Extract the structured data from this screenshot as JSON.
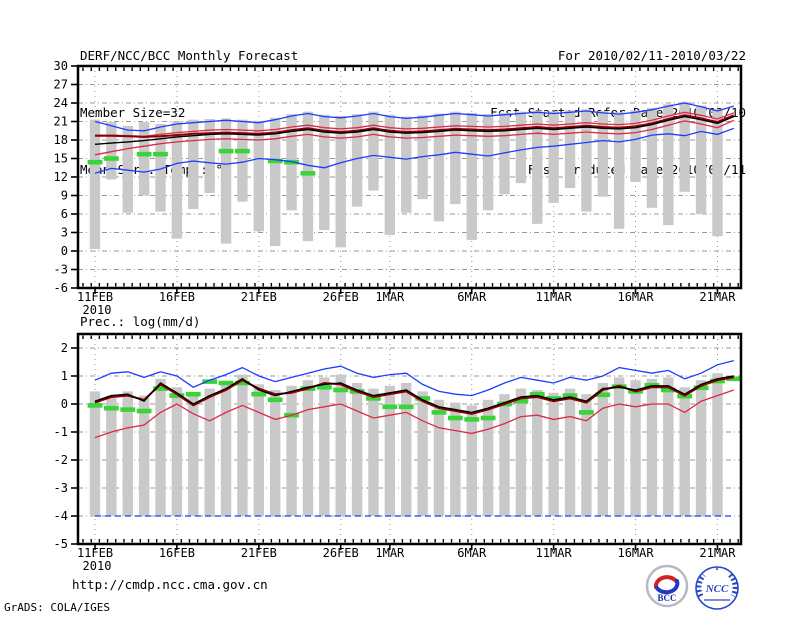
{
  "header": {
    "title": "DERF/NCC/BCC Monthly Forecast",
    "member_size": "Member Size=32",
    "for_range": "For 2010/02/11-2010/03/22",
    "fcst_started": "Fcst Started Refer Date 2010/02/10",
    "fcst_produced": "Fcst Produced Date 2010/02/11"
  },
  "footer": {
    "url": "http://cmdp.ncc.cma.gov.cn",
    "credit": "GrADS: COLA/IGES",
    "logos": {
      "bcc": "BCC",
      "ncc": "NCC"
    }
  },
  "colors": {
    "ensemble_envelope": "#1e3cff",
    "std_band": "#e02848",
    "ensemble_mean": "#000000",
    "control_run": "#8b0000",
    "observation": "#3ad43a",
    "member_bars": "#c9c9c9",
    "grid": "#999999"
  },
  "chart_data": [
    {
      "type": "line",
      "title": "Mean Surf. Temp.: °C",
      "x_start": "2010-02-11",
      "x_end": "2010-03-22",
      "n_days": 40,
      "ylim": [
        -6,
        30
      ],
      "yticks": [
        30,
        27,
        24,
        21,
        18,
        15,
        12,
        9,
        6,
        3,
        0,
        -3,
        -6
      ],
      "x_ticks": [
        {
          "day": 0,
          "label": "11FEB",
          "year": "2010"
        },
        {
          "day": 5,
          "label": "16FEB"
        },
        {
          "day": 10,
          "label": "21FEB"
        },
        {
          "day": 15,
          "label": "26FEB"
        },
        {
          "day": 18,
          "label": "1MAR"
        },
        {
          "day": 23,
          "label": "6MAR"
        },
        {
          "day": 28,
          "label": "11MAR"
        },
        {
          "day": 33,
          "label": "16MAR"
        },
        {
          "day": 38,
          "label": "21MAR"
        }
      ],
      "series": [
        {
          "name": "ensemble-max",
          "color": "#1e3cff",
          "width": 1.3,
          "dash": "",
          "values": [
            21.0,
            20.3,
            19.6,
            19.5,
            20.1,
            20.6,
            20.8,
            21.0,
            21.2,
            21.0,
            20.8,
            21.3,
            21.9,
            22.3,
            21.8,
            21.6,
            21.9,
            22.3,
            21.8,
            21.5,
            21.7,
            22.0,
            22.3,
            22.1,
            21.9,
            22.1,
            22.3,
            22.5,
            22.3,
            22.5,
            22.7,
            22.4,
            22.2,
            22.5,
            22.9,
            23.5,
            24.0,
            23.4,
            22.7,
            23.5
          ]
        },
        {
          "name": "ensemble-min",
          "color": "#1e3cff",
          "width": 1.3,
          "dash": "",
          "values": [
            12.6,
            13.4,
            13.1,
            12.8,
            13.3,
            14.2,
            14.6,
            14.3,
            14.1,
            14.4,
            15.0,
            14.8,
            14.5,
            13.9,
            13.5,
            14.3,
            15.0,
            15.5,
            15.2,
            14.9,
            15.3,
            15.6,
            16.0,
            15.7,
            15.4,
            15.9,
            16.4,
            16.8,
            17.0,
            17.3,
            17.6,
            17.9,
            17.7,
            18.1,
            18.8,
            19.0,
            18.7,
            19.4,
            18.9,
            19.9
          ]
        },
        {
          "name": "mean-plus-std",
          "color": "#e02848",
          "width": 1.3,
          "dash": "",
          "values": [
            18.8,
            18.8,
            18.7,
            18.6,
            18.9,
            19.2,
            19.4,
            19.6,
            19.7,
            19.6,
            19.5,
            19.7,
            20.1,
            20.4,
            20.0,
            19.8,
            20.0,
            20.4,
            20.0,
            19.8,
            19.9,
            20.1,
            20.3,
            20.2,
            20.1,
            20.2,
            20.4,
            20.6,
            20.4,
            20.6,
            20.8,
            20.6,
            20.5,
            20.7,
            21.2,
            21.9,
            22.5,
            22.0,
            21.4,
            22.4
          ]
        },
        {
          "name": "mean-minus-std",
          "color": "#e02848",
          "width": 1.3,
          "dash": "",
          "values": [
            15.6,
            16.1,
            16.6,
            17.0,
            17.4,
            17.7,
            17.9,
            18.1,
            18.2,
            18.1,
            18.0,
            18.2,
            18.6,
            18.9,
            18.5,
            18.3,
            18.5,
            18.9,
            18.5,
            18.3,
            18.4,
            18.6,
            18.8,
            18.7,
            18.6,
            18.7,
            18.9,
            19.1,
            18.9,
            19.1,
            19.3,
            19.1,
            19.0,
            19.2,
            19.7,
            20.4,
            21.1,
            20.6,
            20.0,
            21.2
          ]
        },
        {
          "name": "control-run",
          "color": "#8b0000",
          "width": 2,
          "dash": "",
          "values": [
            18.7,
            18.7,
            18.6,
            18.5,
            18.6,
            18.8,
            19.0,
            19.1,
            19.2,
            19.1,
            19.0,
            19.2,
            19.6,
            19.9,
            19.5,
            19.3,
            19.5,
            19.9,
            19.5,
            19.3,
            19.4,
            19.6,
            19.8,
            19.7,
            19.6,
            19.7,
            19.9,
            20.1,
            19.9,
            20.1,
            20.3,
            20.1,
            20.0,
            20.2,
            20.7,
            21.4,
            22.0,
            21.5,
            20.9,
            22.0
          ]
        },
        {
          "name": "ensemble-mean",
          "color": "#000000",
          "width": 1.4,
          "dash": "",
          "values": [
            17.3,
            17.5,
            17.7,
            17.9,
            18.2,
            18.5,
            18.7,
            18.9,
            19.0,
            18.9,
            18.8,
            19.0,
            19.4,
            19.7,
            19.3,
            19.1,
            19.3,
            19.7,
            19.3,
            19.1,
            19.2,
            19.4,
            19.6,
            19.5,
            19.4,
            19.5,
            19.7,
            19.9,
            19.7,
            19.9,
            20.1,
            19.9,
            19.8,
            20.0,
            20.5,
            21.2,
            21.8,
            21.3,
            20.7,
            21.8
          ]
        }
      ],
      "observation": {
        "name": "observation",
        "color": "#3ad43a",
        "values": [
          14.4,
          15.0,
          null,
          15.7,
          15.7,
          null,
          null,
          null,
          16.2,
          16.2,
          null,
          14.6,
          14.4,
          12.6,
          null,
          null,
          null,
          null,
          null,
          null,
          null,
          null,
          null,
          null,
          null,
          null,
          null,
          null,
          null,
          null,
          null,
          null,
          null,
          null,
          null,
          null,
          null,
          null,
          null,
          null
        ]
      },
      "bars": {
        "name": "member-spread",
        "color": "#c9c9c9",
        "high": [
          21.3,
          20.9,
          20.3,
          20.9,
          20.6,
          21.0,
          21.3,
          21.4,
          21.5,
          21.3,
          21.1,
          21.6,
          22.2,
          22.6,
          22.1,
          21.9,
          22.2,
          22.6,
          22.1,
          21.8,
          22.0,
          22.3,
          22.6,
          22.4,
          22.2,
          22.4,
          22.6,
          22.8,
          22.6,
          22.8,
          23.0,
          22.7,
          22.5,
          22.8,
          23.2,
          23.8,
          24.2,
          23.6,
          23.0,
          null
        ],
        "low": [
          0.3,
          11.6,
          6.2,
          9.0,
          6.4,
          2.0,
          6.8,
          9.4,
          1.2,
          8.0,
          3.2,
          0.8,
          6.6,
          1.6,
          3.4,
          0.6,
          7.2,
          9.8,
          2.6,
          6.2,
          8.4,
          4.8,
          7.6,
          1.8,
          6.6,
          9.2,
          11.0,
          4.4,
          7.8,
          10.2,
          6.4,
          8.8,
          3.6,
          11.2,
          7.0,
          4.2,
          9.6,
          6.0,
          2.4,
          null
        ]
      }
    },
    {
      "type": "line",
      "title": "Prec.: log(mm/d)",
      "x_start": "2010-02-11",
      "x_end": "2010-03-22",
      "n_days": 40,
      "ylim": [
        -5,
        2.5
      ],
      "yticks": [
        2,
        1,
        0,
        -1,
        -2,
        -3,
        -4,
        -5
      ],
      "x_ticks": [
        {
          "day": 0,
          "label": "11FEB",
          "year": "2010"
        },
        {
          "day": 5,
          "label": "16FEB"
        },
        {
          "day": 10,
          "label": "21FEB"
        },
        {
          "day": 15,
          "label": "26FEB"
        },
        {
          "day": 18,
          "label": "1MAR"
        },
        {
          "day": 23,
          "label": "6MAR"
        },
        {
          "day": 28,
          "label": "11MAR"
        },
        {
          "day": 33,
          "label": "16MAR"
        },
        {
          "day": 38,
          "label": "21MAR"
        }
      ],
      "series": [
        {
          "name": "ensemble-max",
          "color": "#1e3cff",
          "width": 1.3,
          "dash": "",
          "values": [
            0.85,
            1.1,
            1.15,
            0.95,
            1.15,
            1.0,
            0.6,
            0.85,
            1.05,
            1.3,
            1.0,
            0.8,
            0.95,
            1.1,
            1.25,
            1.35,
            1.1,
            0.95,
            1.05,
            1.1,
            0.7,
            0.45,
            0.35,
            0.3,
            0.5,
            0.75,
            0.95,
            0.85,
            0.75,
            0.95,
            0.85,
            1.0,
            1.3,
            1.2,
            1.1,
            1.2,
            0.9,
            1.1,
            1.4,
            1.55
          ]
        },
        {
          "name": "ensemble-min",
          "color": "#1e3cff",
          "width": 1.3,
          "dash": "6 4",
          "values": [
            -4,
            -4,
            -4,
            -4,
            -4,
            -4,
            -4,
            -4,
            -4,
            -4,
            -4,
            -4,
            -4,
            -4,
            -4,
            -4,
            -4,
            -4,
            -4,
            -4,
            -4,
            -4,
            -4,
            -4,
            -4,
            -4,
            -4,
            -4,
            -4,
            -4,
            -4,
            -4,
            -4,
            -4,
            -4,
            -4,
            -4,
            -4,
            -4,
            -4
          ]
        },
        {
          "name": "mean-minus-std",
          "color": "#e02848",
          "width": 1.3,
          "dash": "",
          "values": [
            -1.2,
            -1.0,
            -0.85,
            -0.75,
            -0.3,
            0.0,
            -0.35,
            -0.6,
            -0.3,
            -0.05,
            -0.3,
            -0.55,
            -0.4,
            -0.2,
            -0.1,
            0.0,
            -0.25,
            -0.5,
            -0.4,
            -0.3,
            -0.6,
            -0.85,
            -0.95,
            -1.05,
            -0.9,
            -0.7,
            -0.45,
            -0.4,
            -0.55,
            -0.45,
            -0.6,
            -0.15,
            0.0,
            -0.1,
            0.0,
            0.0,
            -0.3,
            0.1,
            0.3,
            0.5
          ]
        },
        {
          "name": "control-run",
          "color": "#8b0000",
          "width": 2,
          "dash": "",
          "values": [
            0.05,
            0.25,
            0.3,
            0.15,
            0.7,
            0.35,
            -0.05,
            0.25,
            0.5,
            0.85,
            0.55,
            0.35,
            0.4,
            0.55,
            0.75,
            0.7,
            0.45,
            0.25,
            0.35,
            0.45,
            0.1,
            -0.15,
            -0.25,
            -0.35,
            -0.2,
            0.0,
            0.2,
            0.25,
            0.1,
            0.2,
            0.05,
            0.5,
            0.65,
            0.45,
            0.6,
            0.6,
            0.3,
            0.65,
            0.85,
            0.95
          ]
        },
        {
          "name": "ensemble-mean",
          "color": "#000000",
          "width": 1.4,
          "dash": "",
          "values": [
            0.1,
            0.3,
            0.35,
            0.1,
            0.75,
            0.4,
            0.0,
            0.3,
            0.55,
            0.9,
            0.5,
            0.3,
            0.45,
            0.6,
            0.7,
            0.75,
            0.5,
            0.3,
            0.4,
            0.5,
            0.15,
            -0.1,
            -0.2,
            -0.3,
            -0.15,
            0.05,
            0.25,
            0.3,
            0.15,
            0.25,
            0.1,
            0.55,
            0.6,
            0.5,
            0.65,
            0.65,
            0.35,
            0.7,
            0.9,
            1.0
          ]
        }
      ],
      "observation": {
        "name": "observation",
        "color": "#3ad43a",
        "values": [
          -0.05,
          -0.15,
          -0.2,
          -0.25,
          0.55,
          0.3,
          0.35,
          0.8,
          0.75,
          0.75,
          0.35,
          0.15,
          -0.4,
          0.55,
          0.6,
          0.5,
          0.45,
          0.2,
          -0.1,
          -0.1,
          0.2,
          -0.3,
          -0.5,
          -0.55,
          -0.5,
          0.0,
          0.1,
          0.35,
          0.2,
          0.3,
          -0.3,
          0.33,
          0.62,
          0.45,
          0.67,
          0.5,
          0.28,
          0.58,
          0.82,
          0.9
        ]
      },
      "bars": {
        "name": "member-spread",
        "color": "#c9c9c9",
        "high": [
          0.45,
          0.3,
          0.45,
          0.3,
          0.9,
          0.6,
          0.3,
          0.55,
          0.75,
          1.05,
          0.7,
          0.5,
          0.65,
          0.85,
          0.95,
          1.05,
          0.75,
          0.55,
          0.65,
          0.75,
          0.45,
          0.15,
          0.05,
          -0.05,
          0.15,
          0.35,
          0.55,
          0.5,
          0.4,
          0.55,
          0.35,
          0.75,
          0.95,
          0.85,
          0.9,
          0.95,
          0.6,
          0.85,
          1.1,
          null
        ],
        "low": [
          -4,
          -4,
          -4,
          -4,
          -4,
          -4,
          -4,
          -4,
          -4,
          -4,
          -4,
          -4,
          -4,
          -4,
          -4,
          -4,
          -4,
          -4,
          -4,
          -4,
          -4,
          -4,
          -4,
          -4,
          -4,
          -4,
          -4,
          -4,
          -4,
          -4,
          -4,
          -4,
          -4,
          -4,
          -4,
          -4,
          -4,
          -4,
          -4,
          null
        ]
      }
    }
  ]
}
